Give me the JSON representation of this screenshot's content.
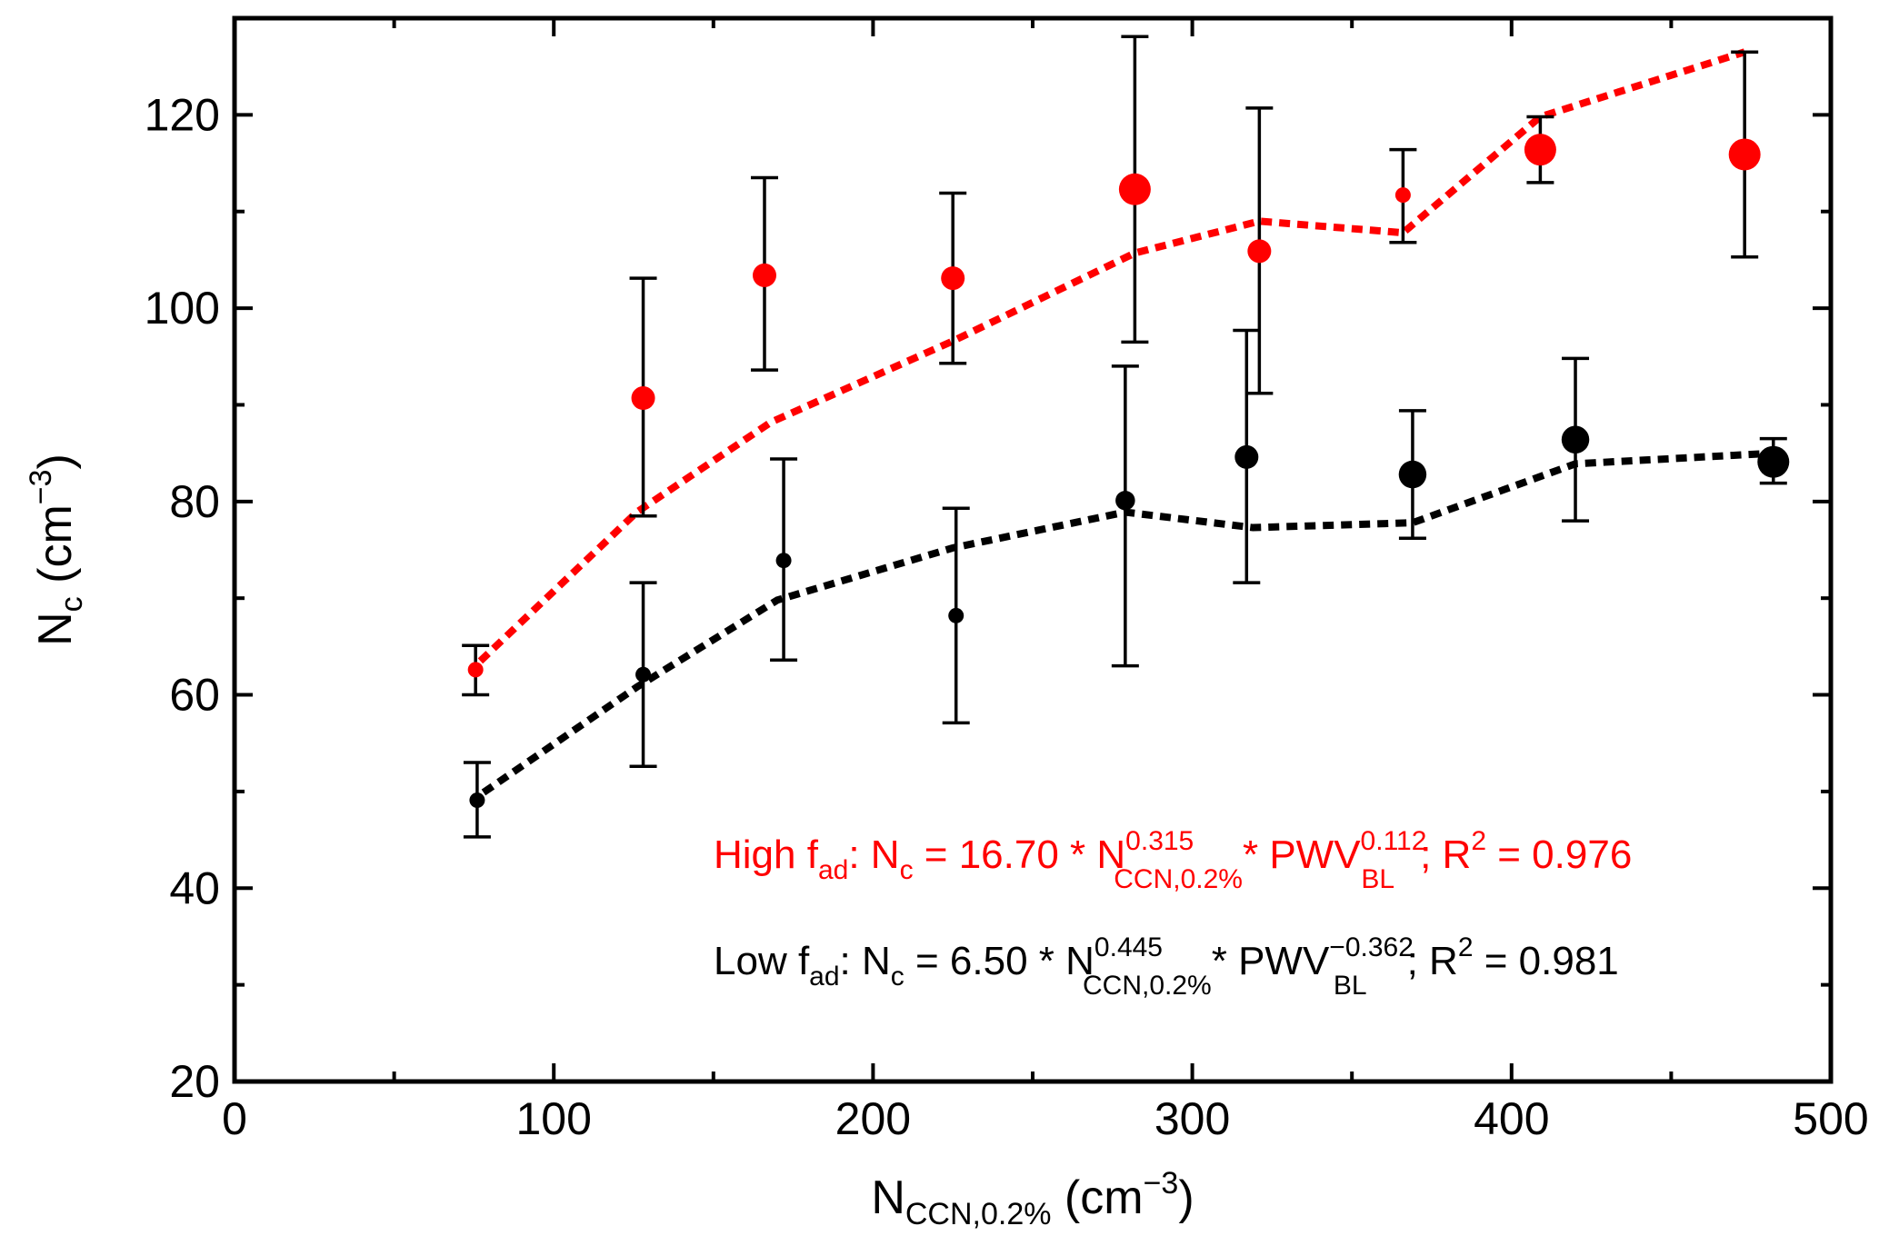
{
  "chart_data": {
    "type": "scatter",
    "xlabel": {
      "main": "N",
      "sub": "CCN,0.2%",
      "unit": " (cm",
      "sup": "−3",
      "close": ")"
    },
    "ylabel": {
      "main": "N",
      "sub": "c",
      "unit": " (cm",
      "sup": "−3",
      "close": ")"
    },
    "xlim": [
      0,
      500
    ],
    "ylim": [
      20,
      130
    ],
    "xticks": [
      0,
      100,
      200,
      300,
      400,
      500
    ],
    "yticks": [
      20,
      40,
      60,
      80,
      100,
      120
    ],
    "xtick_labels": [
      "0",
      "100",
      "200",
      "300",
      "400",
      "500"
    ],
    "ytick_labels": [
      "20",
      "40",
      "60",
      "80",
      "100",
      "120"
    ],
    "grid": false,
    "series": [
      {
        "name": "High f_ad",
        "color": "#ff0000",
        "points": [
          {
            "x": 75.5,
            "y": 62.6,
            "lo": 60.0,
            "hi": 65.1,
            "size": 1
          },
          {
            "x": 128,
            "y": 90.7,
            "lo": 78.5,
            "hi": 103.1,
            "size": 2
          },
          {
            "x": 166,
            "y": 103.4,
            "lo": 93.6,
            "hi": 113.5,
            "size": 2
          },
          {
            "x": 225,
            "y": 103.1,
            "lo": 94.3,
            "hi": 111.9,
            "size": 2
          },
          {
            "x": 282,
            "y": 112.3,
            "lo": 96.5,
            "hi": 128.1,
            "size": 3
          },
          {
            "x": 321,
            "y": 105.9,
            "lo": 91.2,
            "hi": 120.7,
            "size": 2
          },
          {
            "x": 366,
            "y": 111.7,
            "lo": 106.8,
            "hi": 116.4,
            "size": 1
          },
          {
            "x": 409,
            "y": 116.4,
            "lo": 113.0,
            "hi": 119.8,
            "size": 3
          },
          {
            "x": 473,
            "y": 115.9,
            "lo": 105.3,
            "hi": 126.5,
            "size": 3
          }
        ],
        "fit": [
          [
            77,
            63.5
          ],
          [
            126,
            78.9
          ],
          [
            168,
            88.2
          ],
          [
            225,
            96.6
          ],
          [
            282,
            105.7
          ],
          [
            321,
            109.0
          ],
          [
            366,
            107.8
          ],
          [
            409,
            119.8
          ],
          [
            473,
            126.5
          ]
        ]
      },
      {
        "name": "Low f_ad",
        "color": "#000000",
        "points": [
          {
            "x": 76,
            "y": 49.1,
            "lo": 45.3,
            "hi": 53.0,
            "size": 1
          },
          {
            "x": 128,
            "y": 62.1,
            "lo": 52.6,
            "hi": 71.6,
            "size": 1
          },
          {
            "x": 172,
            "y": 73.9,
            "lo": 63.6,
            "hi": 84.4,
            "size": 1
          },
          {
            "x": 226,
            "y": 68.2,
            "lo": 57.1,
            "hi": 79.3,
            "size": 1
          },
          {
            "x": 279,
            "y": 80.1,
            "lo": 63.0,
            "hi": 94.0,
            "size": 1.5
          },
          {
            "x": 317,
            "y": 84.6,
            "lo": 71.6,
            "hi": 97.7,
            "size": 2
          },
          {
            "x": 369,
            "y": 82.8,
            "lo": 76.2,
            "hi": 89.4,
            "size": 2.5
          },
          {
            "x": 420,
            "y": 86.4,
            "lo": 78.0,
            "hi": 94.8,
            "size": 2.5
          },
          {
            "x": 482,
            "y": 84.1,
            "lo": 81.9,
            "hi": 86.5,
            "size": 3
          }
        ],
        "fit": [
          [
            78,
            49.9
          ],
          [
            126,
            60.8
          ],
          [
            170,
            69.8
          ],
          [
            225,
            75.2
          ],
          [
            279,
            78.9
          ],
          [
            319,
            77.3
          ],
          [
            369,
            77.8
          ],
          [
            420,
            83.9
          ],
          [
            482,
            85.0
          ]
        ]
      }
    ],
    "annotations": {
      "high": {
        "color": "#ff0000",
        "a": "High f",
        "a_sub": "ad",
        "b": ": N",
        "b_sub": "c",
        "c": " = 16.70 * N",
        "c_sup": "0.315",
        "c_sub": "CCN,0.2%",
        "d": "* PWV",
        "d_sup": "0.112",
        "d_sub": "BL",
        "e": ";  R",
        "e_sup": "2",
        "f": " = 0.976"
      },
      "low": {
        "color": "#000000",
        "a": "Low  f",
        "a_sub": "ad",
        "b": ": N",
        "b_sub": "c",
        "c": " = 6.50 * N",
        "c_sup": "0.445",
        "c_sub": "CCN,0.2%",
        "d": "* PWV",
        "d_sup": "−0.362",
        "d_sub": "BL",
        "e": ";  R",
        "e_sup": "2",
        "f": " = 0.981"
      }
    }
  }
}
